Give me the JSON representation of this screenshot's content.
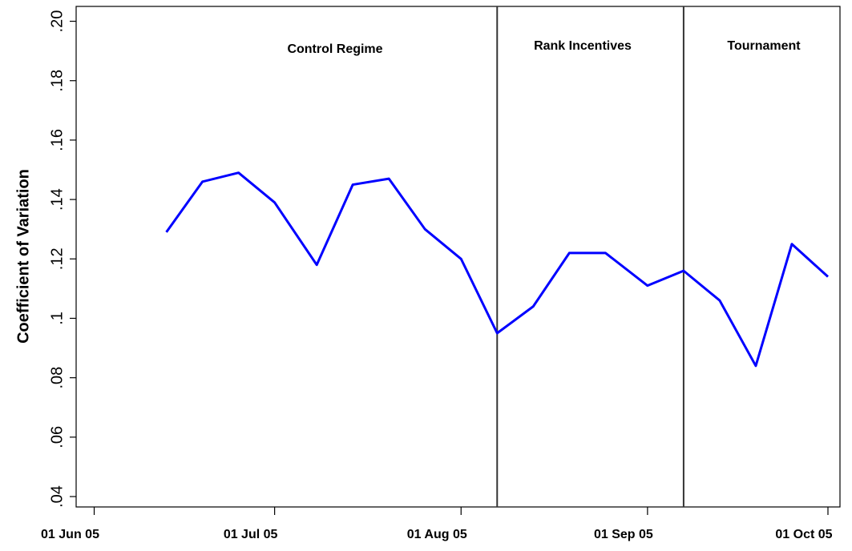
{
  "chart_data": {
    "type": "line",
    "y_label": "Coefficient of Variation",
    "x": [
      "2005-06-13",
      "2005-06-19",
      "2005-06-25",
      "2005-07-01",
      "2005-07-08",
      "2005-07-14",
      "2005-07-20",
      "2005-07-26",
      "2005-08-01",
      "2005-08-07",
      "2005-08-13",
      "2005-08-19",
      "2005-08-25",
      "2005-09-01",
      "2005-09-07",
      "2005-09-13",
      "2005-09-19",
      "2005-09-25",
      "2005-10-01"
    ],
    "series": [
      {
        "color": "#0000ff",
        "values": [
          0.129,
          0.146,
          0.149,
          0.139,
          0.118,
          0.145,
          0.147,
          0.13,
          0.12,
          0.095,
          0.104,
          0.122,
          0.122,
          0.111,
          0.116,
          0.106,
          0.084,
          0.125,
          0.114
        ]
      }
    ],
    "xlim": [
      "2005-05-29",
      "2005-10-03"
    ],
    "xticks": [
      {
        "value": "2005-06-01",
        "label": "01  Jun 05"
      },
      {
        "value": "2005-07-01",
        "label": "01  Jul 05"
      },
      {
        "value": "2005-08-01",
        "label": "01  Aug 05"
      },
      {
        "value": "2005-09-01",
        "label": "01  Sep 05"
      },
      {
        "value": "2005-10-01",
        "label": "01  Oct 05"
      }
    ],
    "ylim": [
      0.0365,
      0.205
    ],
    "yticks": [
      {
        "value": 0.04,
        "label": ".04"
      },
      {
        "value": 0.06,
        "label": ".06"
      },
      {
        "value": 0.08,
        "label": ".08"
      },
      {
        "value": 0.1,
        "label": ".1"
      },
      {
        "value": 0.12,
        "label": ".12"
      },
      {
        "value": 0.14,
        "label": ".14"
      },
      {
        "value": 0.16,
        "label": ".16"
      },
      {
        "value": 0.18,
        "label": ".18"
      },
      {
        "value": 0.2,
        "label": ".20"
      }
    ],
    "vlines": [
      "2005-08-07",
      "2005-09-07"
    ],
    "annotations": [
      "Control Regime",
      "Rank Incentives",
      "Tournament"
    ]
  }
}
